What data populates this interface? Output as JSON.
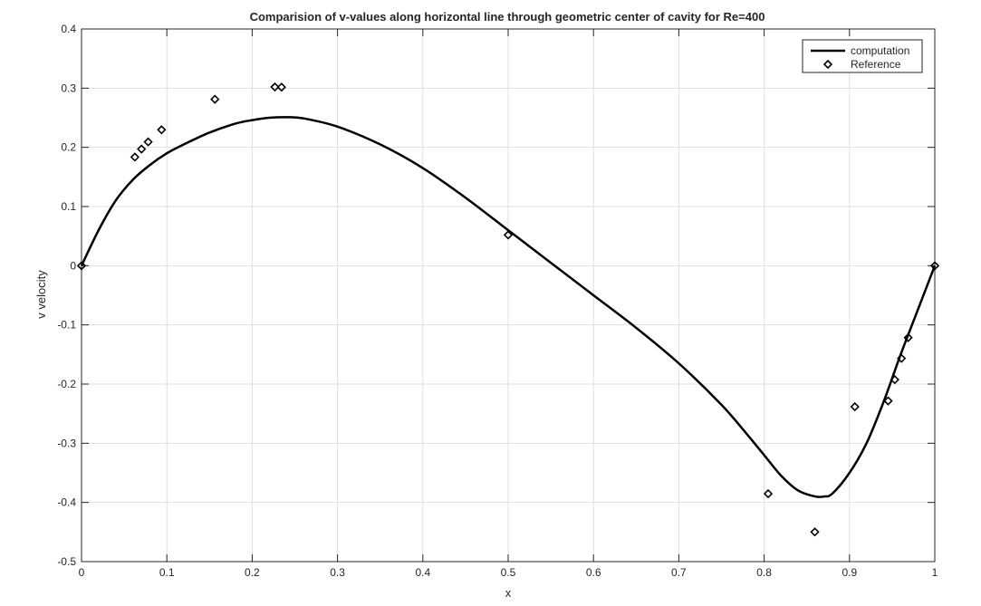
{
  "chart_data": {
    "type": "line",
    "title": "Comparision of v-values along horizontal line through geometric center of cavity for Re=400",
    "xlabel": "x",
    "ylabel": "v velocity",
    "xlim": [
      0,
      1
    ],
    "ylim": [
      -0.5,
      0.4
    ],
    "xticks": [
      0,
      0.1,
      0.2,
      0.3,
      0.4,
      0.5,
      0.6,
      0.7,
      0.8,
      0.9,
      1
    ],
    "yticks": [
      -0.5,
      -0.4,
      -0.3,
      -0.2,
      -0.1,
      0,
      0.1,
      0.2,
      0.3,
      0.4
    ],
    "xtick_labels": [
      "0",
      "0.1",
      "0.2",
      "0.3",
      "0.4",
      "0.5",
      "0.6",
      "0.7",
      "0.8",
      "0.9",
      "1"
    ],
    "ytick_labels": [
      "-0.5",
      "-0.4",
      "-0.3",
      "-0.2",
      "-0.1",
      "0",
      "0.1",
      "0.2",
      "0.3",
      "0.4"
    ],
    "grid": true,
    "legend_position": "top-right",
    "series": [
      {
        "name": "computation",
        "style": "solid-line",
        "color": "#000000",
        "x": [
          0,
          0.02,
          0.04,
          0.06,
          0.08,
          0.1,
          0.12,
          0.15,
          0.18,
          0.2,
          0.22,
          0.24,
          0.26,
          0.3,
          0.35,
          0.4,
          0.45,
          0.5,
          0.55,
          0.6,
          0.65,
          0.7,
          0.75,
          0.78,
          0.8,
          0.82,
          0.84,
          0.86,
          0.87,
          0.88,
          0.9,
          0.92,
          0.94,
          0.96,
          0.98,
          1
        ],
        "y": [
          0,
          0.06,
          0.11,
          0.145,
          0.17,
          0.19,
          0.205,
          0.225,
          0.24,
          0.246,
          0.25,
          0.251,
          0.249,
          0.235,
          0.205,
          0.165,
          0.115,
          0.06,
          0.005,
          -0.05,
          -0.105,
          -0.165,
          -0.235,
          -0.285,
          -0.32,
          -0.355,
          -0.38,
          -0.39,
          -0.39,
          -0.385,
          -0.35,
          -0.3,
          -0.23,
          -0.15,
          -0.075,
          0
        ]
      },
      {
        "name": "Reference",
        "style": "diamond-marker",
        "color": "#000000",
        "x": [
          0,
          0.0625,
          0.0703,
          0.0781,
          0.0938,
          0.1563,
          0.2266,
          0.2344,
          0.5,
          0.8047,
          0.8594,
          0.9063,
          0.9453,
          0.9531,
          0.9609,
          0.9688,
          1
        ],
        "y": [
          0,
          0.1836,
          0.1971,
          0.2092,
          0.2297,
          0.2812,
          0.302,
          0.3017,
          0.0519,
          -0.3853,
          -0.4499,
          -0.2383,
          -0.2285,
          -0.1926,
          -0.1566,
          -0.1215,
          0
        ]
      }
    ]
  }
}
